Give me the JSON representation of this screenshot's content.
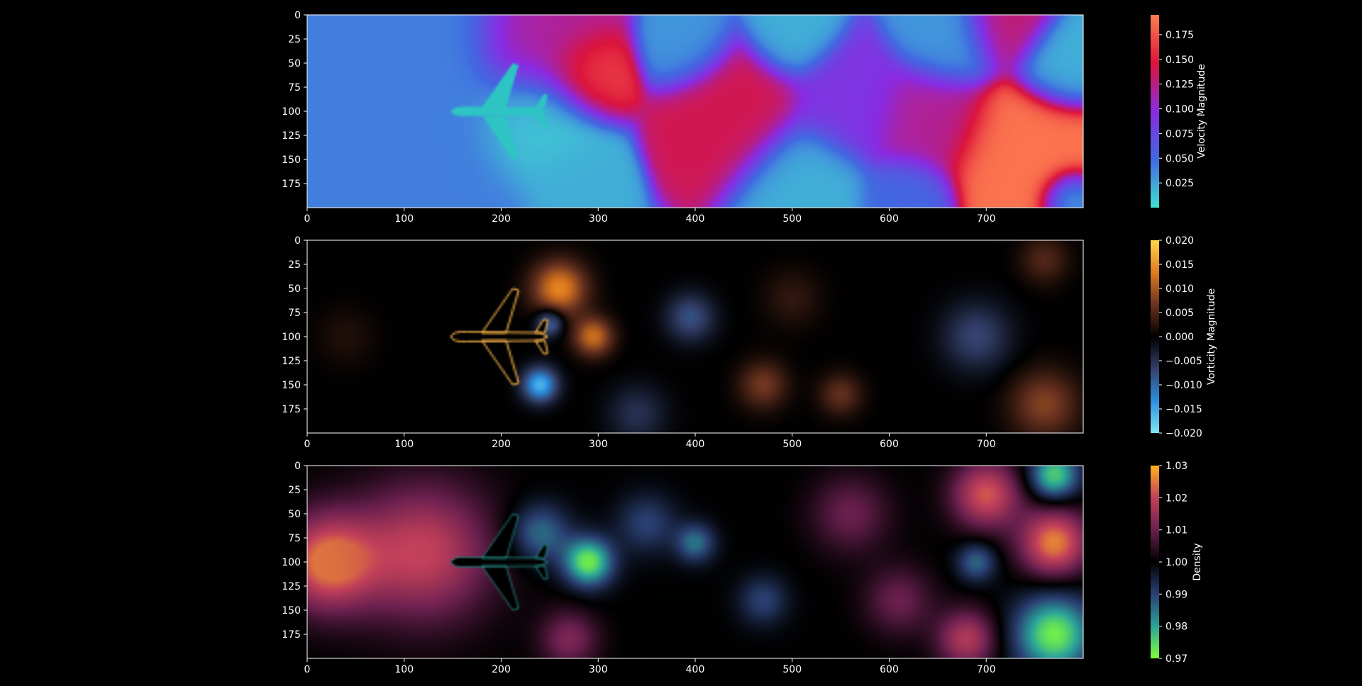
{
  "figure": {
    "background": "#000000",
    "foreground": "#ffffff"
  },
  "chart_data": [
    {
      "type": "heatmap",
      "field": "velocity_magnitude",
      "colorbar_label": "Velocity Magnitude",
      "colormap": [
        "#40e0d0",
        "#4169e1",
        "#8a2be2",
        "#dc143c",
        "#ff7f50"
      ],
      "vmin": 0.0,
      "vmax": 0.195,
      "colorbar_ticks": [
        0.025,
        0.05,
        0.075,
        0.1,
        0.125,
        0.15,
        0.175
      ],
      "colorbar_tick_labels": [
        "0.025",
        "0.050",
        "0.075",
        "0.100",
        "0.125",
        "0.150",
        "0.175"
      ],
      "xlim": [
        0,
        800
      ],
      "ylim": [
        200,
        0
      ],
      "xticks": [
        0,
        100,
        200,
        300,
        400,
        500,
        600,
        700
      ],
      "yticks": [
        0,
        25,
        50,
        75,
        100,
        125,
        150,
        175
      ],
      "blobs": [
        {
          "x": 40,
          "y": 100,
          "r": 120,
          "v": 0.04
        },
        {
          "x": 250,
          "y": 30,
          "r": 45,
          "v": 0.12
        },
        {
          "x": 290,
          "y": 60,
          "r": 30,
          "v": 0.17
        },
        {
          "x": 240,
          "y": 110,
          "r": 40,
          "v": 0.01
        },
        {
          "x": 275,
          "y": 170,
          "r": 30,
          "v": 0.02
        },
        {
          "x": 390,
          "y": 30,
          "r": 30,
          "v": 0.03
        },
        {
          "x": 440,
          "y": 100,
          "r": 45,
          "v": 0.14
        },
        {
          "x": 510,
          "y": 170,
          "r": 40,
          "v": 0.02
        },
        {
          "x": 500,
          "y": 20,
          "r": 30,
          "v": 0.02
        },
        {
          "x": 560,
          "y": 90,
          "r": 40,
          "v": 0.09
        },
        {
          "x": 640,
          "y": 110,
          "r": 40,
          "v": 0.12
        },
        {
          "x": 660,
          "y": 25,
          "r": 35,
          "v": 0.03
        },
        {
          "x": 620,
          "y": 190,
          "r": 30,
          "v": 0.05
        },
        {
          "x": 740,
          "y": 150,
          "r": 50,
          "v": 0.19
        },
        {
          "x": 780,
          "y": 50,
          "r": 30,
          "v": 0.02
        },
        {
          "x": 785,
          "y": 190,
          "r": 20,
          "v": 0.01
        },
        {
          "x": 720,
          "y": 10,
          "r": 30,
          "v": 0.13
        }
      ]
    },
    {
      "type": "heatmap",
      "field": "vorticity_magnitude",
      "colorbar_label": "Vorticity Magnitude",
      "colormap": [
        "#7fe6f0",
        "#2b8fe0",
        "#33406b",
        "#000000",
        "#6b3320",
        "#e07b1e",
        "#ffd84a"
      ],
      "vmin": -0.02,
      "vmax": 0.02,
      "colorbar_ticks": [
        -0.02,
        -0.015,
        -0.01,
        -0.005,
        0.0,
        0.005,
        0.01,
        0.015,
        0.02
      ],
      "colorbar_tick_labels": [
        "−0.020",
        "−0.015",
        "−0.010",
        "−0.005",
        "0.000",
        "0.005",
        "0.010",
        "0.015",
        "0.020"
      ],
      "xlim": [
        0,
        800
      ],
      "ylim": [
        200,
        0
      ],
      "xticks": [
        0,
        100,
        200,
        300,
        400,
        500,
        600,
        700
      ],
      "yticks": [
        0,
        25,
        50,
        75,
        100,
        125,
        150,
        175
      ],
      "blobs": [
        {
          "x": 260,
          "y": 50,
          "r": 28,
          "v": 0.014
        },
        {
          "x": 295,
          "y": 100,
          "r": 20,
          "v": 0.012
        },
        {
          "x": 240,
          "y": 150,
          "r": 18,
          "v": -0.016
        },
        {
          "x": 250,
          "y": 85,
          "r": 14,
          "v": -0.012
        },
        {
          "x": 395,
          "y": 80,
          "r": 25,
          "v": -0.008
        },
        {
          "x": 340,
          "y": 180,
          "r": 30,
          "v": -0.005
        },
        {
          "x": 470,
          "y": 150,
          "r": 25,
          "v": 0.007
        },
        {
          "x": 550,
          "y": 160,
          "r": 22,
          "v": 0.006
        },
        {
          "x": 500,
          "y": 60,
          "r": 30,
          "v": 0.003
        },
        {
          "x": 690,
          "y": 100,
          "r": 35,
          "v": -0.007
        },
        {
          "x": 760,
          "y": 170,
          "r": 35,
          "v": 0.008
        },
        {
          "x": 760,
          "y": 20,
          "r": 25,
          "v": 0.005
        },
        {
          "x": 40,
          "y": 100,
          "r": 30,
          "v": 0.002
        }
      ]
    },
    {
      "type": "heatmap",
      "field": "density",
      "colorbar_label": "Density",
      "colormap": [
        "#7fff3a",
        "#2aa39a",
        "#2a3f72",
        "#000000",
        "#6b2050",
        "#c2405a",
        "#ffb21c"
      ],
      "vmin": 0.97,
      "vmax": 1.03,
      "colorbar_ticks": [
        0.97,
        0.98,
        0.99,
        1.0,
        1.01,
        1.02,
        1.03
      ],
      "colorbar_tick_labels": [
        "0.97",
        "0.98",
        "0.99",
        "1.00",
        "1.01",
        "1.02",
        "1.03"
      ],
      "xlim": [
        0,
        800
      ],
      "ylim": [
        200,
        0
      ],
      "xticks": [
        0,
        100,
        200,
        300,
        400,
        500,
        600,
        700
      ],
      "yticks": [
        0,
        25,
        50,
        75,
        100,
        125,
        150,
        175
      ],
      "blobs": [
        {
          "x": 20,
          "y": 100,
          "r": 50,
          "v": 1.025
        },
        {
          "x": 120,
          "y": 90,
          "r": 70,
          "v": 1.02
        },
        {
          "x": 290,
          "y": 100,
          "r": 25,
          "v": 0.972
        },
        {
          "x": 240,
          "y": 70,
          "r": 30,
          "v": 0.985
        },
        {
          "x": 350,
          "y": 60,
          "r": 30,
          "v": 0.99
        },
        {
          "x": 400,
          "y": 80,
          "r": 20,
          "v": 0.985
        },
        {
          "x": 470,
          "y": 140,
          "r": 25,
          "v": 0.99
        },
        {
          "x": 270,
          "y": 180,
          "r": 30,
          "v": 1.012
        },
        {
          "x": 560,
          "y": 50,
          "r": 40,
          "v": 1.01
        },
        {
          "x": 700,
          "y": 30,
          "r": 35,
          "v": 1.022
        },
        {
          "x": 690,
          "y": 100,
          "r": 20,
          "v": 0.986
        },
        {
          "x": 770,
          "y": 80,
          "r": 35,
          "v": 1.026
        },
        {
          "x": 770,
          "y": 175,
          "r": 40,
          "v": 0.972
        },
        {
          "x": 770,
          "y": 10,
          "r": 25,
          "v": 0.975
        },
        {
          "x": 680,
          "y": 180,
          "r": 30,
          "v": 1.018
        },
        {
          "x": 610,
          "y": 140,
          "r": 35,
          "v": 1.01
        }
      ]
    }
  ]
}
